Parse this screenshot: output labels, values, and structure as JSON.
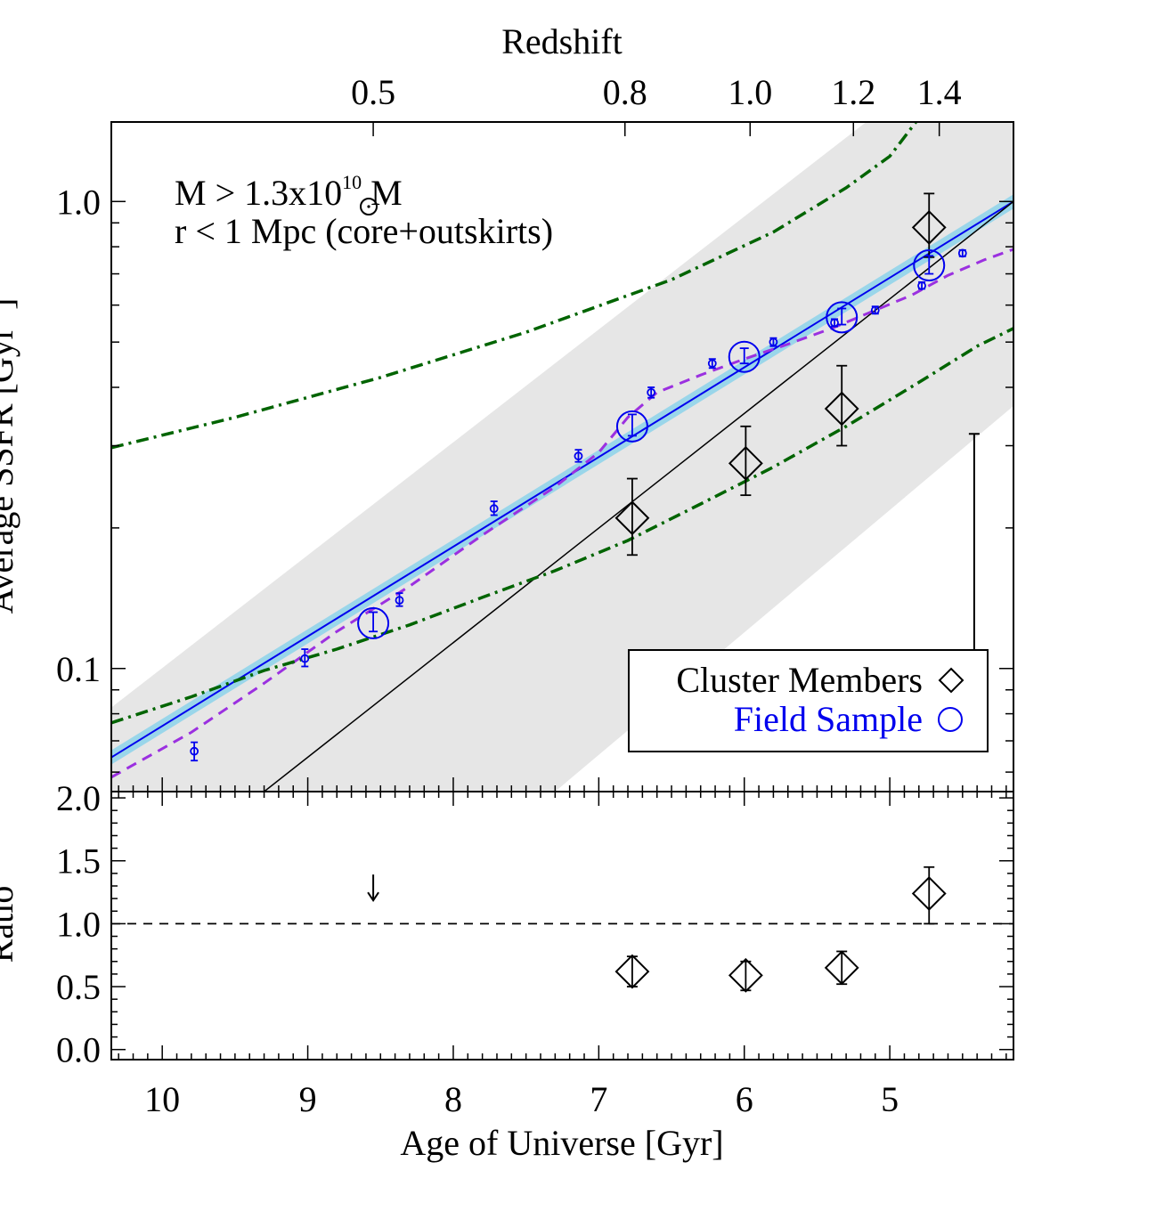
{
  "top_axis": {
    "label": "Redshift",
    "ticks": [
      {
        "age": 8.55,
        "label": "0.5"
      },
      {
        "age": 6.82,
        "label": "0.8"
      },
      {
        "age": 5.96,
        "label": "1.0"
      },
      {
        "age": 5.25,
        "label": "1.2"
      },
      {
        "age": 4.66,
        "label": "1.4"
      }
    ]
  },
  "annotation": {
    "line1": "M > 1.3x10",
    "line1_sup": "10",
    "line1_end": " M",
    "line2": "r < 1 Mpc (core+outskirts)"
  },
  "legend": {
    "cluster": "Cluster Members",
    "field": "Field Sample"
  },
  "colors": {
    "field": "#0000ee",
    "band": "#9ad6ea",
    "model_dash": "#9b30e0",
    "dashdot": "#006400",
    "shade": "#e6e6e6"
  },
  "chart_data": [
    {
      "type": "scatter",
      "ylabel": "Average SSFR [Gyr",
      "ylabel_sup": "-1",
      "ylabel_end": "]",
      "xlim": [
        10.35,
        4.15
      ],
      "ylim": [
        0.0545,
        1.48
      ],
      "yscale": "log",
      "yticks": [
        {
          "v": 0.1,
          "label": "0.1"
        },
        {
          "v": 1.0,
          "label": "1.0"
        }
      ],
      "series": [
        {
          "name": "Cluster Members",
          "marker": "diamond",
          "points": [
            {
              "x": 6.77,
              "y": 0.21,
              "lo": 0.175,
              "hi": 0.255
            },
            {
              "x": 5.99,
              "y": 0.275,
              "lo": 0.235,
              "hi": 0.33
            },
            {
              "x": 5.33,
              "y": 0.36,
              "lo": 0.3,
              "hi": 0.445
            },
            {
              "x": 4.73,
              "y": 0.88,
              "lo": 0.76,
              "hi": 1.04
            }
          ]
        },
        {
          "name": "Field Sample",
          "marker": "circle-large",
          "points": [
            {
              "x": 8.55,
              "y": 0.125,
              "lo": 0.12,
              "hi": 0.132
            },
            {
              "x": 6.77,
              "y": 0.33,
              "lo": 0.315,
              "hi": 0.35
            },
            {
              "x": 6.0,
              "y": 0.465,
              "lo": 0.45,
              "hi": 0.485
            },
            {
              "x": 5.33,
              "y": 0.565,
              "lo": 0.545,
              "hi": 0.59
            },
            {
              "x": 4.73,
              "y": 0.73,
              "lo": 0.7,
              "hi": 0.765
            }
          ]
        },
        {
          "name": "Field bins",
          "marker": "circle-small",
          "points": [
            {
              "x": 9.78,
              "y": 0.0665,
              "lo": 0.0635,
              "hi": 0.0695
            },
            {
              "x": 9.02,
              "y": 0.105,
              "lo": 0.101,
              "hi": 0.11
            },
            {
              "x": 8.37,
              "y": 0.14,
              "lo": 0.136,
              "hi": 0.145
            },
            {
              "x": 7.72,
              "y": 0.22,
              "lo": 0.213,
              "hi": 0.228
            },
            {
              "x": 7.14,
              "y": 0.285,
              "lo": 0.277,
              "hi": 0.294
            },
            {
              "x": 6.64,
              "y": 0.39,
              "lo": 0.38,
              "hi": 0.4
            },
            {
              "x": 6.22,
              "y": 0.45,
              "lo": 0.44,
              "hi": 0.46
            },
            {
              "x": 5.8,
              "y": 0.5,
              "lo": 0.49,
              "hi": 0.51
            },
            {
              "x": 5.38,
              "y": 0.55,
              "lo": 0.54,
              "hi": 0.56
            },
            {
              "x": 5.1,
              "y": 0.585,
              "lo": 0.575,
              "hi": 0.596
            },
            {
              "x": 4.78,
              "y": 0.66,
              "lo": 0.65,
              "hi": 0.672
            },
            {
              "x": 4.5,
              "y": 0.775,
              "lo": 0.763,
              "hi": 0.787
            }
          ]
        }
      ],
      "lines": {
        "field_fit": [
          [
            10.35,
            0.0645
          ],
          [
            4.15,
            1.0
          ]
        ],
        "cluster_fit": [
          [
            9.3,
            0.0545
          ],
          [
            4.15,
            1.0
          ]
        ],
        "shade_top": [
          [
            10.35,
            0.0825
          ],
          [
            4.15,
            2.6
          ]
        ],
        "shade_bottom": [
          [
            7.3,
            0.0545
          ],
          [
            4.15,
            0.365
          ]
        ],
        "model_dashed": [
          [
            10.35,
            0.0585
          ],
          [
            9.8,
            0.073
          ],
          [
            9.3,
            0.093
          ],
          [
            8.8,
            0.12
          ],
          [
            8.3,
            0.15
          ],
          [
            7.8,
            0.193
          ],
          [
            7.3,
            0.245
          ],
          [
            7.0,
            0.29
          ],
          [
            6.8,
            0.345
          ],
          [
            6.6,
            0.39
          ],
          [
            6.3,
            0.425
          ],
          [
            6.0,
            0.46
          ],
          [
            5.7,
            0.495
          ],
          [
            5.4,
            0.535
          ],
          [
            5.1,
            0.585
          ],
          [
            4.85,
            0.63
          ],
          [
            4.6,
            0.695
          ],
          [
            4.35,
            0.75
          ],
          [
            4.15,
            0.79
          ]
        ],
        "upper_dashdot": [
          [
            10.35,
            0.297
          ],
          [
            9.5,
            0.345
          ],
          [
            8.5,
            0.42
          ],
          [
            7.5,
            0.525
          ],
          [
            6.5,
            0.68
          ],
          [
            5.8,
            0.86
          ],
          [
            5.3,
            1.07
          ],
          [
            5.0,
            1.25
          ],
          [
            4.82,
            1.48
          ]
        ],
        "lower_dashdot": [
          [
            10.35,
            0.0765
          ],
          [
            9.8,
            0.087
          ],
          [
            9.3,
            0.099
          ],
          [
            8.8,
            0.11
          ],
          [
            8.3,
            0.124
          ],
          [
            7.8,
            0.142
          ],
          [
            7.3,
            0.162
          ],
          [
            6.8,
            0.188
          ],
          [
            6.3,
            0.225
          ],
          [
            5.8,
            0.27
          ],
          [
            5.3,
            0.33
          ],
          [
            4.8,
            0.41
          ],
          [
            4.4,
            0.49
          ],
          [
            4.15,
            0.535
          ]
        ]
      },
      "representative_error": {
        "x": 4.42,
        "lo": 0.0895,
        "hi": 0.318
      }
    },
    {
      "type": "scatter",
      "xlabel": "Age of Universe [Gyr]",
      "ylabel": "Ratio",
      "xlim": [
        10.35,
        4.15
      ],
      "ylim": [
        -0.08,
        2.05
      ],
      "xticks": [
        {
          "v": 10,
          "label": "10"
        },
        {
          "v": 9,
          "label": "9"
        },
        {
          "v": 8,
          "label": "8"
        },
        {
          "v": 7,
          "label": "7"
        },
        {
          "v": 6,
          "label": "6"
        },
        {
          "v": 5,
          "label": "5"
        }
      ],
      "yticks": [
        {
          "v": 0.0,
          "label": "0.0"
        },
        {
          "v": 0.5,
          "label": "0.5"
        },
        {
          "v": 1.0,
          "label": "1.0"
        },
        {
          "v": 1.5,
          "label": "1.5"
        },
        {
          "v": 2.0,
          "label": "2.0"
        }
      ],
      "reference_line": 1.0,
      "upper_limit": {
        "x": 8.55,
        "y": 1.32
      },
      "points": [
        {
          "x": 6.77,
          "y": 0.62,
          "lo": 0.5,
          "hi": 0.74
        },
        {
          "x": 5.99,
          "y": 0.59,
          "lo": 0.47,
          "hi": 0.7
        },
        {
          "x": 5.33,
          "y": 0.65,
          "lo": 0.52,
          "hi": 0.78
        },
        {
          "x": 4.73,
          "y": 1.24,
          "lo": 1.0,
          "hi": 1.45
        }
      ]
    }
  ]
}
